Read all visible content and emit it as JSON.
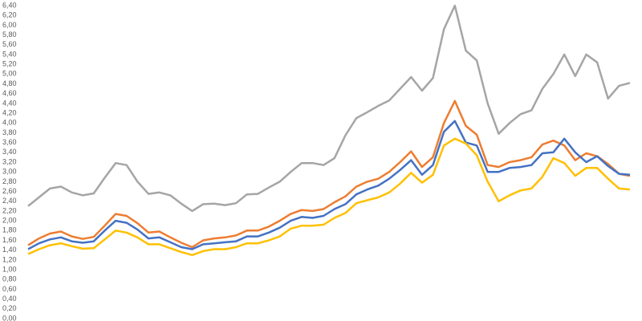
{
  "chart_data": {
    "type": "line",
    "ylim": [
      0,
      6.4
    ],
    "yticks": [
      {
        "value": 0,
        "label": "0,00"
      },
      {
        "value": 0.2,
        "label": "0,20"
      },
      {
        "value": 0.4,
        "label": "0,40"
      },
      {
        "value": 0.6,
        "label": "0,60"
      },
      {
        "value": 0.8,
        "label": "0,80"
      },
      {
        "value": 1.0,
        "label": "1,00"
      },
      {
        "value": 1.2,
        "label": "1,20"
      },
      {
        "value": 1.4,
        "label": "1,40"
      },
      {
        "value": 1.6,
        "label": "1,60"
      },
      {
        "value": 1.8,
        "label": "1,80"
      },
      {
        "value": 2.0,
        "label": "2,00"
      },
      {
        "value": 2.2,
        "label": "2,20"
      },
      {
        "value": 2.4,
        "label": "2,40"
      },
      {
        "value": 2.6,
        "label": "2,60"
      },
      {
        "value": 2.8,
        "label": "2,80"
      },
      {
        "value": 3.0,
        "label": "3,00"
      },
      {
        "value": 3.2,
        "label": "3,20"
      },
      {
        "value": 3.4,
        "label": "3,40"
      },
      {
        "value": 3.6,
        "label": "3,60"
      },
      {
        "value": 3.8,
        "label": "3,80"
      },
      {
        "value": 4.0,
        "label": "4,00"
      },
      {
        "value": 4.2,
        "label": "4,20"
      },
      {
        "value": 4.4,
        "label": "4,40"
      },
      {
        "value": 4.6,
        "label": "4,60"
      },
      {
        "value": 4.8,
        "label": "4,80"
      },
      {
        "value": 5.0,
        "label": "5,00"
      },
      {
        "value": 5.2,
        "label": "5,20"
      },
      {
        "value": 5.4,
        "label": "5,40"
      },
      {
        "value": 5.6,
        "label": "5,60"
      },
      {
        "value": 5.8,
        "label": "5,80"
      },
      {
        "value": 6.0,
        "label": "6,00"
      },
      {
        "value": 6.2,
        "label": "6,20"
      },
      {
        "value": 6.4,
        "label": "6,40"
      }
    ],
    "grid": false,
    "series": [
      {
        "color": "#a5a5a5",
        "values": [
          2.3,
          2.48,
          2.66,
          2.7,
          2.58,
          2.52,
          2.56,
          2.88,
          3.18,
          3.14,
          2.8,
          2.55,
          2.58,
          2.52,
          2.35,
          2.2,
          2.34,
          2.35,
          2.32,
          2.36,
          2.54,
          2.55,
          2.68,
          2.8,
          3.0,
          3.18,
          3.18,
          3.14,
          3.28,
          3.75,
          4.1,
          4.22,
          4.35,
          4.46,
          4.7,
          4.94,
          4.66,
          4.92,
          5.92,
          6.4,
          5.48,
          5.28,
          4.4,
          3.78,
          4.0,
          4.18,
          4.26,
          4.7,
          5.0,
          5.4,
          4.96,
          5.4,
          5.24,
          4.5,
          4.76,
          4.82
        ]
      },
      {
        "color": "#ed7d31",
        "values": [
          1.5,
          1.64,
          1.74,
          1.78,
          1.68,
          1.63,
          1.67,
          1.9,
          2.14,
          2.1,
          1.95,
          1.76,
          1.78,
          1.66,
          1.55,
          1.46,
          1.6,
          1.64,
          1.66,
          1.7,
          1.8,
          1.8,
          1.88,
          2.0,
          2.14,
          2.22,
          2.2,
          2.24,
          2.38,
          2.5,
          2.7,
          2.8,
          2.86,
          3.0,
          3.2,
          3.42,
          3.1,
          3.3,
          4.0,
          4.45,
          3.94,
          3.76,
          3.14,
          3.1,
          3.2,
          3.24,
          3.3,
          3.56,
          3.64,
          3.54,
          3.24,
          3.38,
          3.32,
          3.16,
          2.96,
          2.92
        ]
      },
      {
        "color": "#4472c4",
        "values": [
          1.42,
          1.54,
          1.62,
          1.66,
          1.58,
          1.55,
          1.58,
          1.8,
          2.0,
          1.96,
          1.82,
          1.64,
          1.66,
          1.56,
          1.46,
          1.42,
          1.52,
          1.54,
          1.56,
          1.58,
          1.68,
          1.68,
          1.76,
          1.86,
          2.0,
          2.08,
          2.06,
          2.1,
          2.24,
          2.34,
          2.54,
          2.64,
          2.72,
          2.86,
          3.04,
          3.24,
          2.94,
          3.14,
          3.82,
          4.04,
          3.6,
          3.54,
          3.0,
          3.0,
          3.08,
          3.1,
          3.14,
          3.38,
          3.4,
          3.68,
          3.4,
          3.2,
          3.32,
          3.12,
          2.96,
          2.94
        ]
      },
      {
        "color": "#ffc000",
        "values": [
          1.32,
          1.42,
          1.5,
          1.54,
          1.48,
          1.43,
          1.44,
          1.62,
          1.8,
          1.76,
          1.66,
          1.52,
          1.52,
          1.44,
          1.36,
          1.3,
          1.38,
          1.42,
          1.42,
          1.46,
          1.54,
          1.54,
          1.6,
          1.68,
          1.84,
          1.9,
          1.9,
          1.92,
          2.06,
          2.16,
          2.36,
          2.42,
          2.48,
          2.58,
          2.76,
          2.98,
          2.78,
          2.94,
          3.54,
          3.68,
          3.58,
          3.34,
          2.8,
          2.4,
          2.52,
          2.62,
          2.66,
          2.9,
          3.28,
          3.18,
          2.92,
          3.08,
          3.08,
          2.86,
          2.66,
          2.64
        ]
      }
    ]
  }
}
